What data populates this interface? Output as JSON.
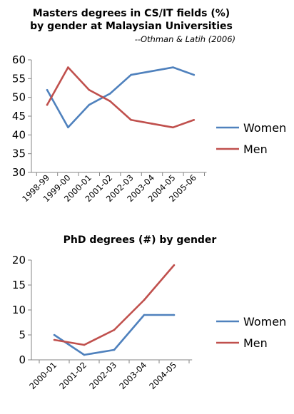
{
  "chart_data": [
    {
      "type": "line",
      "title": "Masters degrees in CS/IT fields (%)",
      "subtitle": "by gender at Malaysian Universities",
      "source": "--Othman & Latih (2006)",
      "categories": [
        "1998-99",
        "1999-00",
        "2000-01",
        "2001-02",
        "2002-03",
        "2003-04",
        "2004-05",
        "2005-06"
      ],
      "series": [
        {
          "name": "Women",
          "color": "#4f81bd",
          "values": [
            52,
            42,
            48,
            51,
            56,
            57,
            58,
            56
          ]
        },
        {
          "name": "Men",
          "color": "#c0504d",
          "values": [
            48,
            58,
            52,
            49,
            44,
            43,
            42,
            44
          ]
        }
      ],
      "yticks": [
        30,
        35,
        40,
        45,
        50,
        55,
        60
      ],
      "ylim": [
        30,
        60
      ],
      "legend_position": "right",
      "grid": false
    },
    {
      "type": "line",
      "title": "PhD degrees (#) by gender",
      "categories": [
        "2000-01",
        "2001-02",
        "2002-03",
        "2003-04",
        "2004-05"
      ],
      "series": [
        {
          "name": "Women",
          "color": "#4f81bd",
          "values": [
            5,
            1,
            2,
            9,
            9
          ]
        },
        {
          "name": "Men",
          "color": "#c0504d",
          "values": [
            4,
            3,
            6,
            12,
            19
          ]
        }
      ],
      "yticks": [
        0,
        5,
        10,
        15,
        20
      ],
      "ylim": [
        0,
        20
      ],
      "legend_position": "right",
      "grid": false
    }
  ]
}
